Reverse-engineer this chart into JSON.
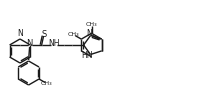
{
  "bg_color": "#ffffff",
  "line_color": "#1a1a1a",
  "bond_lw": 1.0,
  "figsize": [
    2.22,
    1.01
  ],
  "dpi": 100,
  "xlim": [
    0,
    222
  ],
  "ylim": [
    0,
    101
  ]
}
